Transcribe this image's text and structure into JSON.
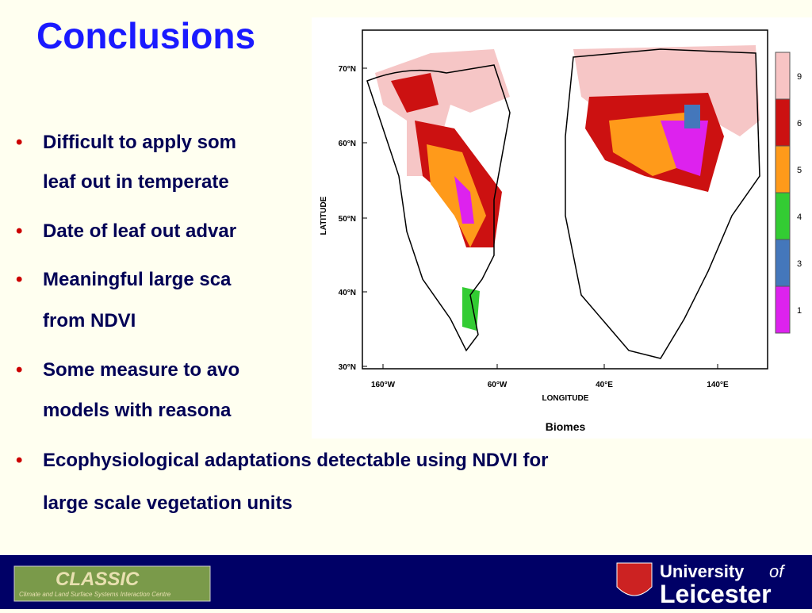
{
  "title": "Conclusions",
  "bullets": [
    {
      "lines": [
        "Difficult to apply som",
        "leaf out in temperate"
      ]
    },
    {
      "lines": [
        "Date of leaf out advar"
      ]
    },
    {
      "lines": [
        "Meaningful large sca",
        "from NDVI"
      ]
    },
    {
      "lines": [
        "Some measure to avo",
        "models with reasona"
      ]
    },
    {
      "lines": [
        "Ecophysiological adaptations detectable using NDVI for",
        "large scale vegetation units"
      ]
    }
  ],
  "figure": {
    "lat_labels": [
      "70°N",
      "60°N",
      "50°N",
      "40°N",
      "30°N"
    ],
    "lon_labels": [
      "160°W",
      "60°W",
      "40°E",
      "140°E"
    ],
    "y_axis_label": "LATITUDE",
    "x_axis_label": "LONGITUDE",
    "caption": "Biomes",
    "legend": [
      "9",
      "6",
      "5",
      "4",
      "3",
      "1"
    ]
  },
  "footer": {
    "logo_title": "CLASSIC",
    "logo_subtitle": "Climate and Land Surface Systems Interaction Centre",
    "university": "University",
    "of": "of",
    "city": "Leicester"
  }
}
